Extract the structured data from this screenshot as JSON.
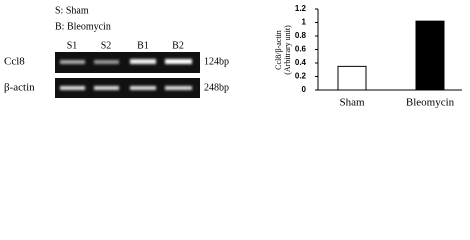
{
  "gel": {
    "legend": [
      "S: Sham",
      "B: Bleomycin"
    ],
    "lanes": [
      "S1",
      "S2",
      "B1",
      "B2"
    ],
    "rows": [
      {
        "label": "Ccl8",
        "size": "124bp"
      },
      {
        "label": "β-actin",
        "size": "248bp"
      }
    ]
  },
  "chart_data": {
    "type": "bar",
    "y_label": [
      "Ccl8/β-actin",
      "(Arbitrary unit)"
    ],
    "categories": [
      "Sham",
      "Bleomycin"
    ],
    "values": [
      0.35,
      1.02
    ],
    "colors": [
      "#ffffff",
      "#000000"
    ],
    "ylim": [
      0,
      1.2
    ],
    "yticks": [
      0,
      0.2,
      0.4,
      0.6,
      0.8,
      1,
      1.2
    ]
  }
}
